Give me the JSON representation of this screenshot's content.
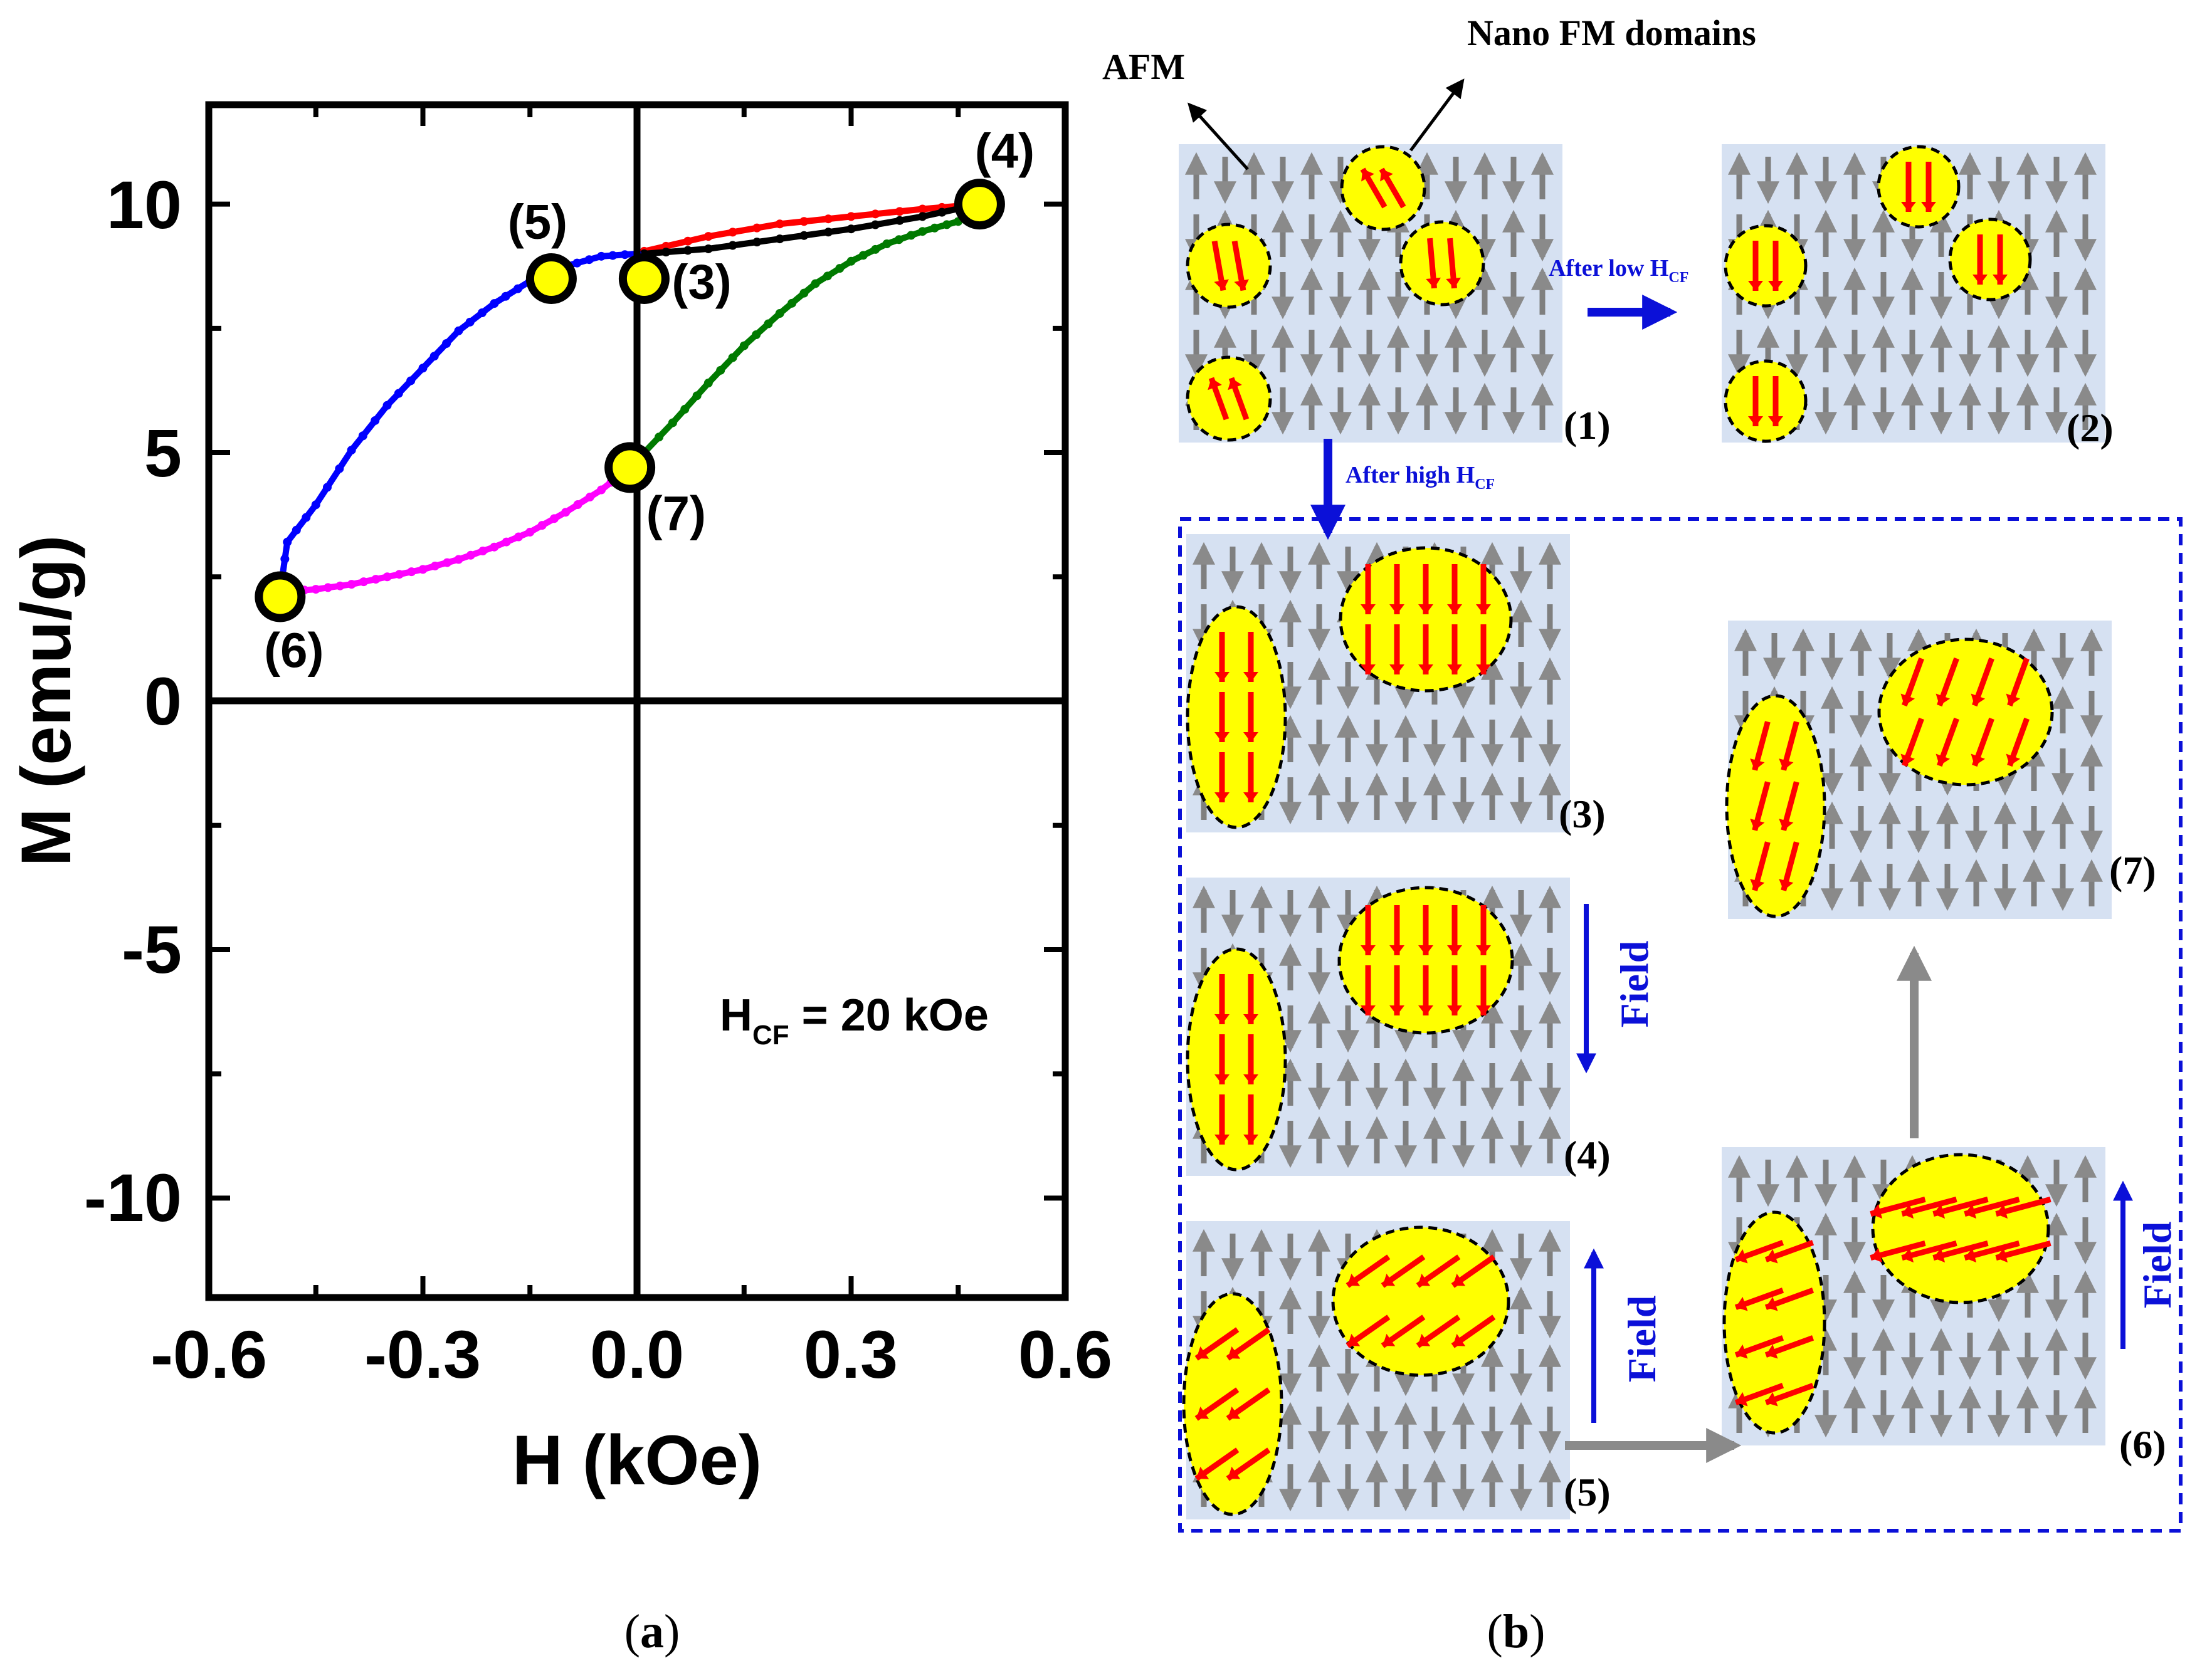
{
  "chart_data": {
    "type": "line",
    "xlabel": "H (kOe)",
    "ylabel": "M (emu/g)",
    "xlim": [
      -0.6,
      0.6
    ],
    "ylim": [
      -12,
      12
    ],
    "xticks": [
      "-0.6",
      "-0.3",
      "0.0",
      "0.3",
      "0.6"
    ],
    "yticks": [
      "10",
      "5",
      "0",
      "-5",
      "-10"
    ],
    "annotation": {
      "main": "H",
      "sub": "CF",
      "rest": " = 20 kOe"
    },
    "series": [
      {
        "name": "initial-red",
        "color": "#ff0000",
        "x": [
          0.01,
          0.1,
          0.2,
          0.3,
          0.4,
          0.48
        ],
        "y": [
          9.05,
          9.35,
          9.6,
          9.75,
          9.9,
          10.0
        ]
      },
      {
        "name": "initial-black",
        "color": "#000000",
        "x": [
          0.01,
          0.1,
          0.2,
          0.3,
          0.4,
          0.48
        ],
        "y": [
          9.0,
          9.1,
          9.3,
          9.5,
          9.75,
          10.0
        ]
      },
      {
        "name": "decreasing-blue",
        "color": "#0000ff",
        "x": [
          0.0,
          -0.05,
          -0.1,
          -0.15,
          -0.2,
          -0.25,
          -0.3,
          -0.35,
          -0.4,
          -0.45,
          -0.49,
          -0.5
        ],
        "y": [
          9.0,
          8.95,
          8.75,
          8.45,
          8.0,
          7.45,
          6.7,
          5.95,
          5.05,
          3.95,
          3.2,
          2.2
        ]
      },
      {
        "name": "increasing-magenta",
        "color": "#ff00ff",
        "x": [
          -0.5,
          -0.45,
          -0.4,
          -0.35,
          -0.3,
          -0.25,
          -0.2,
          -0.15,
          -0.1,
          -0.05,
          -0.01
        ],
        "y": [
          2.2,
          2.25,
          2.35,
          2.5,
          2.65,
          2.85,
          3.1,
          3.4,
          3.8,
          4.25,
          4.7
        ]
      },
      {
        "name": "increasing-green",
        "color": "#007a00",
        "x": [
          -0.01,
          0.05,
          0.1,
          0.15,
          0.2,
          0.25,
          0.3,
          0.35,
          0.4,
          0.45,
          0.48
        ],
        "y": [
          4.7,
          5.6,
          6.4,
          7.15,
          7.8,
          8.4,
          8.85,
          9.2,
          9.45,
          9.65,
          9.85
        ]
      }
    ],
    "markers": [
      {
        "label": "(3)",
        "x": 0.01,
        "y": 8.5,
        "label_pos": "right"
      },
      {
        "label": "(4)",
        "x": 0.48,
        "y": 10.0,
        "label_pos": "top"
      },
      {
        "label": "(5)",
        "x": -0.12,
        "y": 8.5,
        "label_pos": "top"
      },
      {
        "label": "(6)",
        "x": -0.5,
        "y": 2.1,
        "label_pos": "bottom"
      },
      {
        "label": "(7)",
        "x": -0.01,
        "y": 4.7,
        "label_pos": "bottom-right"
      }
    ]
  },
  "schematic": {
    "labels": {
      "afm": "AFM",
      "nano_fm": "Nano FM domains",
      "after_low": {
        "main": "After low H",
        "sub": "CF"
      },
      "after_high": {
        "main": "After high H",
        "sub": "CF"
      },
      "field": "Field"
    },
    "panels": {
      "p1": "(1)",
      "p2": "(2)",
      "p3": "(3)",
      "p4": "(4)",
      "p5": "(5)",
      "p6": "(6)",
      "p7": "(7)"
    }
  },
  "captions": {
    "a": "a",
    "b": "b"
  },
  "colors": {
    "domain_fill": "#ffff00",
    "panel_bg": "#d6e1f2",
    "afm_arrow": "#7f7f7f",
    "fm_arrow": "#ff0000",
    "blue": "#0b10d8"
  }
}
